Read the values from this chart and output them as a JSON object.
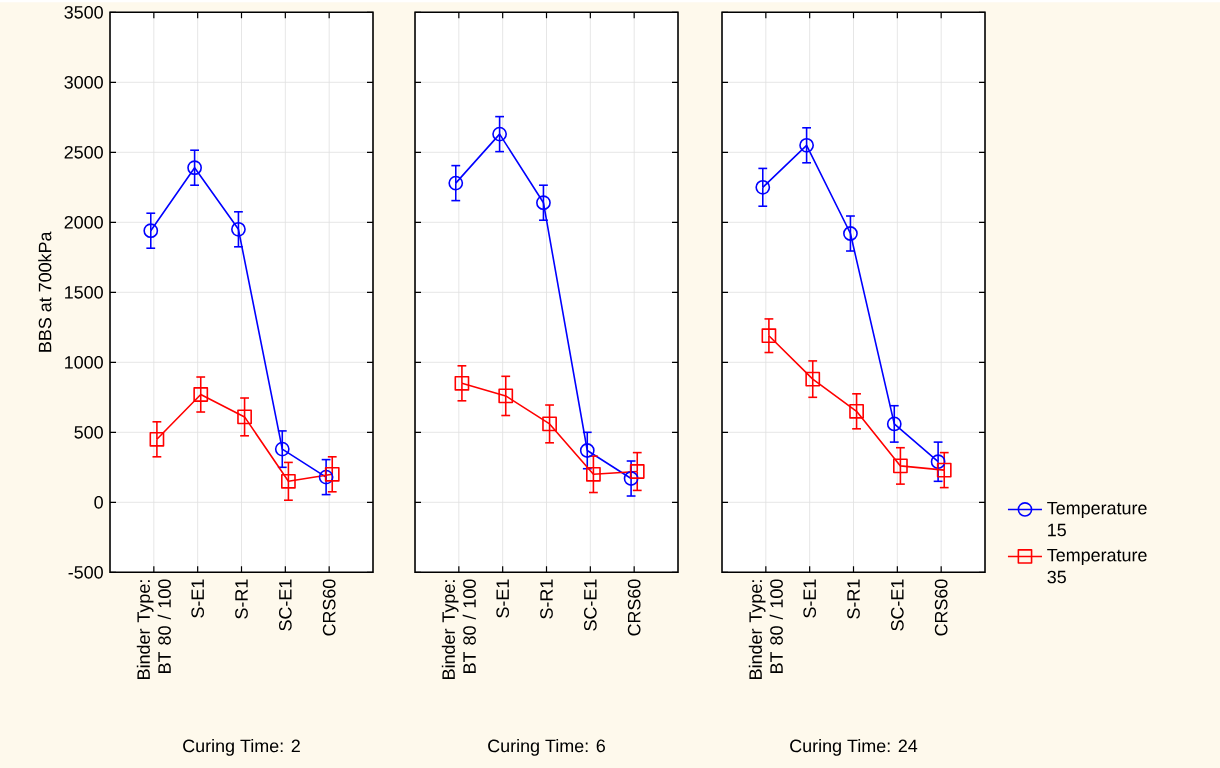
{
  "chart_data": [
    {
      "type": "line",
      "xlabel": "Curing Time: 2",
      "ylabel": "BBS at 700kPa",
      "categories": [
        "Binder Type: BT 80 / 100",
        "S-E1",
        "S-R1",
        "SC-E1",
        "CRS60"
      ],
      "ylim": [
        -500,
        3500
      ],
      "yticks": [
        -500,
        0,
        500,
        1000,
        1500,
        2000,
        2500,
        3000,
        3500
      ],
      "grid": true,
      "series": [
        {
          "color": "#0000ff",
          "marker": "circle",
          "values": [
            1940,
            2390,
            1950,
            380,
            180
          ],
          "errors": [
            125,
            125,
            125,
            130,
            125
          ]
        },
        {
          "color": "#ff0000",
          "marker": "square",
          "values": [
            450,
            770,
            610,
            150,
            200
          ],
          "errors": [
            125,
            125,
            135,
            135,
            125
          ]
        }
      ]
    },
    {
      "type": "line",
      "xlabel": "Curing Time: 6",
      "categories": [
        "Binder Type: BT 80 / 100",
        "S-E1",
        "S-R1",
        "SC-E1",
        "CRS60"
      ],
      "ylim": [
        -500,
        3500
      ],
      "yticks": [
        -500,
        0,
        500,
        1000,
        1500,
        2000,
        2500,
        3000,
        3500
      ],
      "grid": true,
      "tick_labels": "x",
      "series": [
        {
          "color": "#0000ff",
          "marker": "circle",
          "values": [
            2280,
            2630,
            2140,
            370,
            170
          ],
          "errors": [
            125,
            125,
            125,
            130,
            125
          ]
        },
        {
          "color": "#ff0000",
          "marker": "square",
          "values": [
            850,
            760,
            560,
            200,
            220
          ],
          "errors": [
            125,
            140,
            135,
            130,
            135
          ]
        }
      ]
    },
    {
      "type": "line",
      "xlabel": "Curing Time: 24",
      "categories": [
        "Binder Type: BT 80 / 100",
        "S-E1",
        "S-R1",
        "SC-E1",
        "CRS60"
      ],
      "ylim": [
        -500,
        3500
      ],
      "yticks": [
        -500,
        0,
        500,
        1000,
        1500,
        2000,
        2500,
        3000,
        3500
      ],
      "grid": true,
      "tick_labels": "x",
      "legend": "right",
      "series": [
        {
          "name": "Temperature 15",
          "color": "#0000ff",
          "marker": "circle",
          "values": [
            2250,
            2550,
            1920,
            560,
            290
          ],
          "errors": [
            135,
            125,
            125,
            130,
            140
          ]
        },
        {
          "name": "Temperature 35",
          "color": "#ff0000",
          "marker": "square",
          "values": [
            1190,
            880,
            650,
            260,
            230
          ],
          "errors": [
            120,
            130,
            125,
            130,
            125
          ]
        }
      ]
    }
  ]
}
